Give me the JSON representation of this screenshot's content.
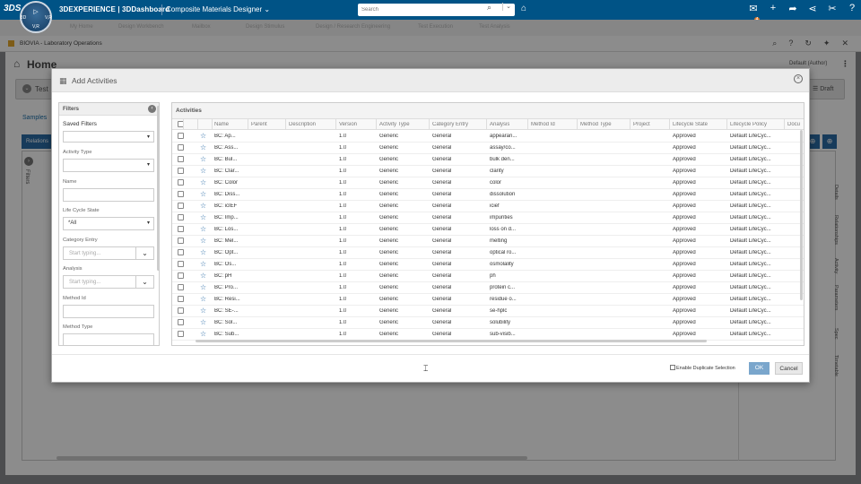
{
  "topbar": {
    "logo": "3DS",
    "compass": {
      "top": "▷",
      "left": "3D",
      "right": "V,R",
      "bottom": "V,R"
    },
    "brand": "3DEXPERIENCE | 3DDashboard",
    "app": "Composite Materials Designer",
    "search_placeholder": "Search",
    "notification_count": "4"
  },
  "background": {
    "tabs": [
      "My Home",
      "Design Workbench",
      "Mailbox",
      "Design Stimulus",
      "Design / Research Engineering",
      "Test Execution",
      "Test Analysis"
    ],
    "app_header": "BIOVIA - Laboratory Operations",
    "page_title": "Home",
    "author": "Default (Author)",
    "test_label": "Test",
    "draft_label": "Draft",
    "samples_link": "Samples",
    "relations_label": "Relations",
    "filters_side": "Filters",
    "side_tabs": [
      "Details",
      "Relationships",
      "Activity",
      "Parameters",
      "Spec",
      "Timetable"
    ]
  },
  "modal": {
    "title": "Add Activities",
    "filters": {
      "header": "Filters",
      "saved_filters": "Saved Filters",
      "activity_type": "Activity Type",
      "name": "Name",
      "lifecycle_state": "Life Cycle State",
      "lifecycle_value": "*All",
      "category_entry": "Category Entry",
      "category_placeholder": "Start typing...",
      "analysis": "Analysis",
      "analysis_placeholder": "Start typing...",
      "method_id": "Method Id",
      "method_type": "Method Type"
    },
    "grid": {
      "header": "Activities",
      "columns": [
        "Name",
        "Parent",
        "Description",
        "Version",
        "Activity Type",
        "Category Entry",
        "Analysis",
        "Method Id",
        "Method Type",
        "Project",
        "Lifecycle State",
        "Lifecycle Policy",
        "Docu"
      ],
      "rows": [
        {
          "name": "BC: Ap...",
          "version": "1.0",
          "type": "Generic",
          "category": "General",
          "analysis": "appearan...",
          "state": "Approved",
          "policy": "Default LifeCyc..."
        },
        {
          "name": "BC: Ass...",
          "version": "1.0",
          "type": "Generic",
          "category": "General",
          "analysis": "assay/co...",
          "state": "Approved",
          "policy": "Default LifeCyc..."
        },
        {
          "name": "BC: Bul...",
          "version": "1.0",
          "type": "Generic",
          "category": "General",
          "analysis": "bulk den...",
          "state": "Approved",
          "policy": "Default LifeCyc..."
        },
        {
          "name": "BC: Clar...",
          "version": "1.0",
          "type": "Generic",
          "category": "General",
          "analysis": "clarity",
          "state": "Approved",
          "policy": "Default LifeCyc..."
        },
        {
          "name": "BC: Color",
          "version": "1.0",
          "type": "Generic",
          "category": "General",
          "analysis": "color",
          "state": "Approved",
          "policy": "Default LifeCyc..."
        },
        {
          "name": "BC: Diss...",
          "version": "1.0",
          "type": "Generic",
          "category": "General",
          "analysis": "dissolution",
          "state": "Approved",
          "policy": "Default LifeCyc..."
        },
        {
          "name": "BC: icIEF",
          "version": "1.0",
          "type": "Generic",
          "category": "General",
          "analysis": "icief",
          "state": "Approved",
          "policy": "Default LifeCyc..."
        },
        {
          "name": "BC: Imp...",
          "version": "1.0",
          "type": "Generic",
          "category": "General",
          "analysis": "impurities",
          "state": "Approved",
          "policy": "Default LifeCyc..."
        },
        {
          "name": "BC: Los...",
          "version": "1.0",
          "type": "Generic",
          "category": "General",
          "analysis": "loss on d...",
          "state": "Approved",
          "policy": "Default LifeCyc..."
        },
        {
          "name": "BC: Mel...",
          "version": "1.0",
          "type": "Generic",
          "category": "General",
          "analysis": "melting",
          "state": "Approved",
          "policy": "Default LifeCyc..."
        },
        {
          "name": "BC: Opt...",
          "version": "1.0",
          "type": "Generic",
          "category": "General",
          "analysis": "optical ro...",
          "state": "Approved",
          "policy": "Default LifeCyc..."
        },
        {
          "name": "BC: Os...",
          "version": "1.0",
          "type": "Generic",
          "category": "General",
          "analysis": "osmolality",
          "state": "Approved",
          "policy": "Default LifeCyc..."
        },
        {
          "name": "BC: pH",
          "version": "1.0",
          "type": "Generic",
          "category": "General",
          "analysis": "ph",
          "state": "Approved",
          "policy": "Default LifeCyc..."
        },
        {
          "name": "BC: Pro...",
          "version": "1.0",
          "type": "Generic",
          "category": "General",
          "analysis": "protein c...",
          "state": "Approved",
          "policy": "Default LifeCyc..."
        },
        {
          "name": "BC: Resi...",
          "version": "1.0",
          "type": "Generic",
          "category": "General",
          "analysis": "residue o...",
          "state": "Approved",
          "policy": "Default LifeCyc..."
        },
        {
          "name": "BC: SE-...",
          "version": "1.0",
          "type": "Generic",
          "category": "General",
          "analysis": "se-hplc",
          "state": "Approved",
          "policy": "Default LifeCyc..."
        },
        {
          "name": "BC: Sol...",
          "version": "1.0",
          "type": "Generic",
          "category": "General",
          "analysis": "solubility",
          "state": "Approved",
          "policy": "Default LifeCyc..."
        },
        {
          "name": "BC: Sub...",
          "version": "1.0",
          "type": "Generic",
          "category": "General",
          "analysis": "sub-visib...",
          "state": "Approved",
          "policy": "Default LifeCyc..."
        }
      ]
    },
    "footer": {
      "duplicate_label": "Enable Duplicate Selection",
      "ok": "OK",
      "cancel": "Cancel"
    }
  }
}
